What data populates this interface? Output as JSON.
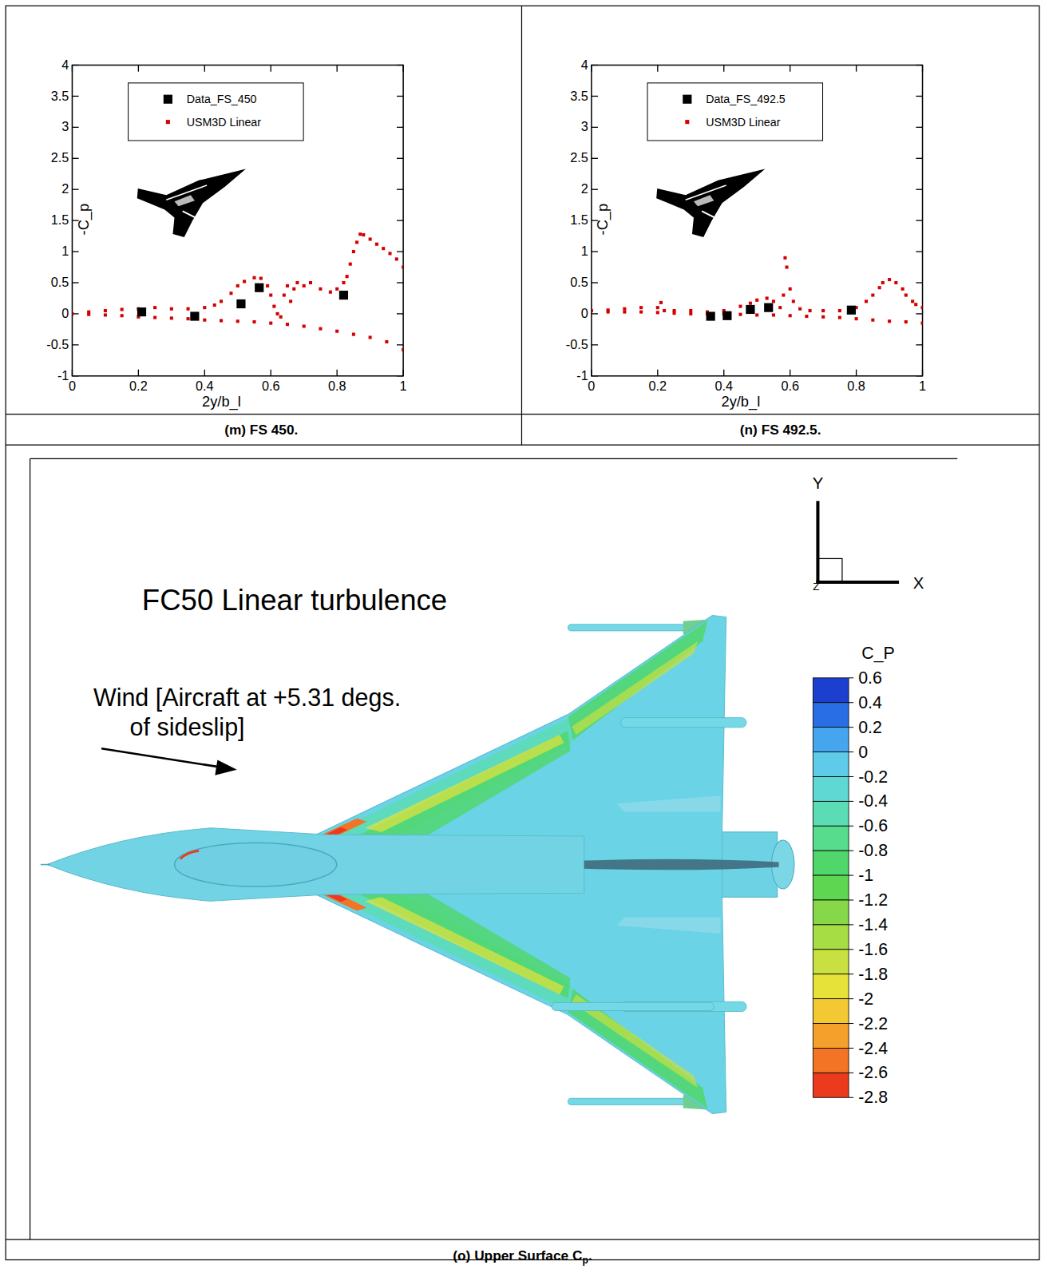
{
  "chart_data": [
    {
      "type": "scatter",
      "title": "(m) FS 450.",
      "xlabel": "2y/b_l",
      "ylabel": "-C_p",
      "xlim": [
        0,
        1
      ],
      "xticks": [
        0,
        0.2,
        0.4,
        0.6,
        0.8,
        1
      ],
      "ylim": [
        -1,
        4
      ],
      "yticks": [
        -1,
        -0.5,
        0,
        0.5,
        1,
        1.5,
        2,
        2.5,
        3,
        3.5,
        4
      ],
      "legend": "upper left",
      "series": [
        {
          "name": "Data_FS_450",
          "color": "#000000",
          "marker": "square",
          "x": [
            0.21,
            0.37,
            0.51,
            0.565,
            0.82
          ],
          "values": [
            0.03,
            -0.04,
            0.16,
            0.42,
            0.3
          ]
        },
        {
          "name": "USM3D Linear",
          "color": "#d40000",
          "marker": "square",
          "x": [
            0,
            0.05,
            0.1,
            0.15,
            0.2,
            0.25,
            0.3,
            0.35,
            0.4,
            0.43,
            0.45,
            0.48,
            0.5,
            0.52,
            0.55,
            0.57,
            0.59,
            0.6,
            0.61,
            0.62,
            0.63,
            0.64,
            0.65,
            0.66,
            0.67,
            0.68,
            0.7,
            0.72,
            0.75,
            0.78,
            0.8,
            0.82,
            0.83,
            0.84,
            0.85,
            0.86,
            0.87,
            0.88,
            0.9,
            0.92,
            0.94,
            0.96,
            0.98,
            1,
            0.05,
            0.1,
            0.15,
            0.2,
            0.25,
            0.3,
            0.35,
            0.4,
            0.45,
            0.5,
            0.55,
            0.6,
            0.65,
            0.7,
            0.75,
            0.8,
            0.85,
            0.9,
            0.95,
            1
          ],
          "values": [
            0,
            0.03,
            0.05,
            0.07,
            0.08,
            0.1,
            0.08,
            0.08,
            0.1,
            0.14,
            0.2,
            0.33,
            0.45,
            0.52,
            0.58,
            0.57,
            0.45,
            0.3,
            0.12,
            0,
            -0.05,
            0.3,
            0.45,
            0.2,
            0.4,
            0.5,
            0.45,
            0.5,
            0.4,
            0.35,
            0.4,
            0.5,
            0.6,
            0.8,
            1,
            1.15,
            1.28,
            1.27,
            1.2,
            1.12,
            1.05,
            0.97,
            0.88,
            0.75,
            -0.01,
            -0.02,
            -0.03,
            -0.05,
            -0.06,
            -0.07,
            -0.08,
            -0.1,
            -0.11,
            -0.12,
            -0.13,
            -0.15,
            -0.17,
            -0.2,
            -0.24,
            -0.28,
            -0.33,
            -0.38,
            -0.45,
            -0.58
          ]
        }
      ]
    },
    {
      "type": "scatter",
      "title": "(n) FS 492.5.",
      "xlabel": "2y/b_l",
      "ylabel": "-C_p",
      "xlim": [
        0,
        1
      ],
      "xticks": [
        0,
        0.2,
        0.4,
        0.6,
        0.8,
        1
      ],
      "ylim": [
        -1,
        4
      ],
      "yticks": [
        -1,
        -0.5,
        0,
        0.5,
        1,
        1.5,
        2,
        2.5,
        3,
        3.5,
        4
      ],
      "legend": "upper left",
      "series": [
        {
          "name": "Data_FS_492.5",
          "color": "#000000",
          "marker": "square",
          "x": [
            0.36,
            0.41,
            0.48,
            0.535,
            0.785
          ],
          "values": [
            -0.04,
            -0.03,
            0.07,
            0.1,
            0.06
          ]
        },
        {
          "name": "USM3D Linear",
          "color": "#d40000",
          "marker": "square",
          "x": [
            0,
            0.05,
            0.1,
            0.15,
            0.2,
            0.21,
            0.22,
            0.25,
            0.3,
            0.35,
            0.4,
            0.45,
            0.48,
            0.5,
            0.53,
            0.55,
            0.57,
            0.58,
            0.585,
            0.59,
            0.6,
            0.61,
            0.63,
            0.66,
            0.7,
            0.75,
            0.8,
            0.83,
            0.85,
            0.87,
            0.88,
            0.9,
            0.92,
            0.94,
            0.95,
            0.97,
            0.98,
            1,
            0.05,
            0.1,
            0.15,
            0.2,
            0.25,
            0.3,
            0.35,
            0.4,
            0.45,
            0.5,
            0.55,
            0.6,
            0.65,
            0.7,
            0.75,
            0.8,
            0.85,
            0.9,
            0.95,
            1
          ],
          "values": [
            0.05,
            0.06,
            0.08,
            0.1,
            0.1,
            0.18,
            0.05,
            0.05,
            0.05,
            0.03,
            0.05,
            0.12,
            0.17,
            0.22,
            0.25,
            0.2,
            0.1,
            0.3,
            0.9,
            0.75,
            0.4,
            0.2,
            0.08,
            0.05,
            0.05,
            0.05,
            0.1,
            0.2,
            0.3,
            0.42,
            0.5,
            0.55,
            0.5,
            0.4,
            0.3,
            0.2,
            0.15,
            0.1,
            0.03,
            0.03,
            0.03,
            0.02,
            0.01,
            0,
            0,
            0,
            -0.01,
            -0.02,
            -0.02,
            -0.03,
            -0.04,
            -0.05,
            -0.06,
            -0.08,
            -0.1,
            -0.12,
            -0.13,
            -0.15
          ]
        }
      ]
    }
  ],
  "contour_panel": {
    "title": "FC50 Linear turbulence",
    "annotation": [
      "Wind [Aircraft at +5.31 degs.",
      "of sideslip]"
    ],
    "axes_labels": {
      "y": "Y",
      "x": "X",
      "z": "Z"
    },
    "colorbar": {
      "title": "C_P",
      "range": [
        -2.8,
        0.6
      ],
      "ticks": [
        0.6,
        0.4,
        0.2,
        0,
        -0.2,
        -0.4,
        -0.6,
        -0.8,
        -1,
        -1.2,
        -1.4,
        -1.6,
        -1.8,
        -2,
        -2.2,
        -2.4,
        -2.6,
        -2.8
      ],
      "colors": [
        "#1c3fd0",
        "#2a6ee6",
        "#45a6ef",
        "#5ecbe8",
        "#5fd8d3",
        "#5cdcb4",
        "#56dc8c",
        "#50d66a",
        "#5ed652",
        "#86d848",
        "#a6dc44",
        "#c8e040",
        "#e6e23a",
        "#f3c832",
        "#f5a02a",
        "#f27424",
        "#ec3a1e"
      ]
    },
    "caption": [
      "(o) Upper Surface C",
      "p",
      "."
    ]
  }
}
